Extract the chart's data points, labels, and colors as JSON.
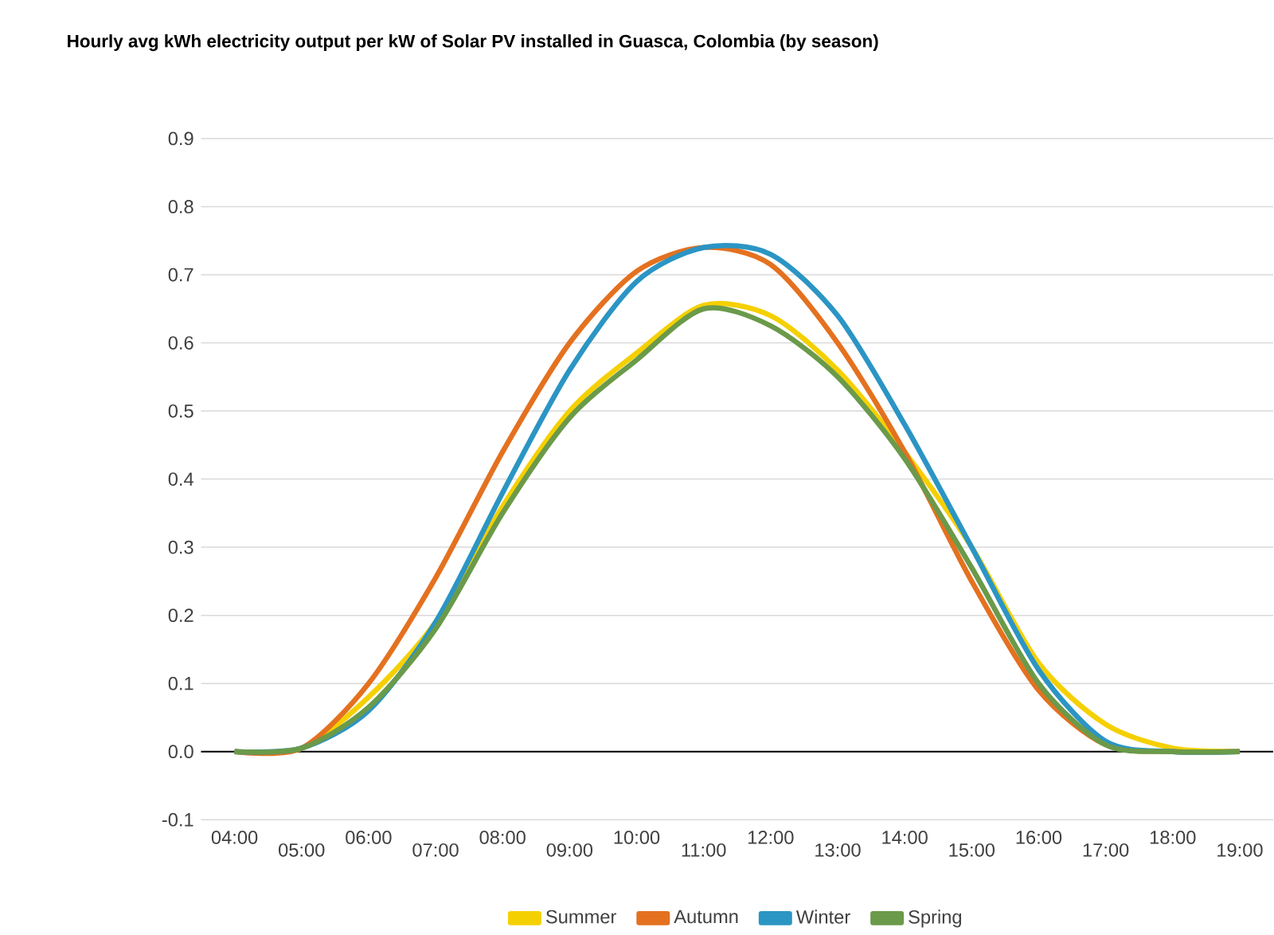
{
  "chart_data": {
    "type": "line",
    "title": "Hourly avg kWh electricity output per kW of Solar PV installed in Guasca, Colombia (by season)",
    "categories": [
      "04:00",
      "05:00",
      "06:00",
      "07:00",
      "08:00",
      "09:00",
      "10:00",
      "11:00",
      "12:00",
      "13:00",
      "14:00",
      "15:00",
      "16:00",
      "17:00",
      "18:00",
      "19:00"
    ],
    "series": [
      {
        "name": "Summer",
        "color": "#f5d000",
        "values": [
          0,
          0.005,
          0.08,
          0.19,
          0.36,
          0.5,
          0.585,
          0.655,
          0.64,
          0.56,
          0.44,
          0.3,
          0.13,
          0.04,
          0.005,
          0
        ]
      },
      {
        "name": "Autumn",
        "color": "#e4711f",
        "values": [
          0,
          0.005,
          0.1,
          0.255,
          0.44,
          0.6,
          0.705,
          0.74,
          0.715,
          0.6,
          0.44,
          0.25,
          0.09,
          0.01,
          0,
          0
        ]
      },
      {
        "name": "Winter",
        "color": "#2b95c4",
        "values": [
          0,
          0.005,
          0.06,
          0.19,
          0.38,
          0.56,
          0.69,
          0.74,
          0.73,
          0.64,
          0.48,
          0.3,
          0.12,
          0.015,
          0,
          0
        ]
      },
      {
        "name": "Spring",
        "color": "#6a9a4a",
        "values": [
          0,
          0.005,
          0.065,
          0.18,
          0.35,
          0.49,
          0.575,
          0.65,
          0.625,
          0.55,
          0.43,
          0.27,
          0.1,
          0.01,
          0,
          0
        ]
      }
    ],
    "ylim": [
      -0.1,
      0.9
    ],
    "yticks": [
      -0.1,
      {
        "value": 0,
        "label": "0.0"
      },
      0.1,
      0.2,
      0.3,
      0.4,
      0.5,
      0.6,
      0.7,
      0.8,
      0.9
    ],
    "grid": "y",
    "legend": "bottom",
    "marker": "none",
    "line_style": "solid",
    "ref_lines": [
      {
        "axis": "y",
        "value": 0,
        "color": "#000000"
      }
    ]
  }
}
